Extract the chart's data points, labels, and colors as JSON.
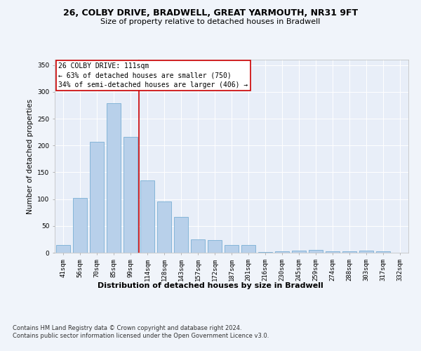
{
  "title1": "26, COLBY DRIVE, BRADWELL, GREAT YARMOUTH, NR31 9FT",
  "title2": "Size of property relative to detached houses in Bradwell",
  "xlabel": "Distribution of detached houses by size in Bradwell",
  "ylabel": "Number of detached properties",
  "categories": [
    "41sqm",
    "56sqm",
    "70sqm",
    "85sqm",
    "99sqm",
    "114sqm",
    "128sqm",
    "143sqm",
    "157sqm",
    "172sqm",
    "187sqm",
    "201sqm",
    "216sqm",
    "230sqm",
    "245sqm",
    "259sqm",
    "274sqm",
    "288sqm",
    "303sqm",
    "317sqm",
    "332sqm"
  ],
  "values": [
    14,
    102,
    207,
    279,
    216,
    135,
    96,
    67,
    25,
    23,
    14,
    15,
    1,
    3,
    4,
    5,
    3,
    3,
    4,
    3,
    0
  ],
  "bar_color": "#b8d0ea",
  "bar_edge_color": "#7aafd4",
  "annotation_line1": "26 COLBY DRIVE: 111sqm",
  "annotation_line2": "← 63% of detached houses are smaller (750)",
  "annotation_line3": "34% of semi-detached houses are larger (406) →",
  "annotation_box_facecolor": "#ffffff",
  "annotation_box_edgecolor": "#cc0000",
  "vline_color": "#cc0000",
  "vline_x": 4.5,
  "ylim": [
    0,
    360
  ],
  "yticks": [
    0,
    50,
    100,
    150,
    200,
    250,
    300,
    350
  ],
  "bg_color": "#e8eef8",
  "fig_bg_color": "#f0f4fa",
  "footer1": "Contains HM Land Registry data © Crown copyright and database right 2024.",
  "footer2": "Contains public sector information licensed under the Open Government Licence v3.0.",
  "title1_fontsize": 9,
  "title2_fontsize": 8,
  "xlabel_fontsize": 8,
  "ylabel_fontsize": 7.5,
  "tick_fontsize": 6.5,
  "annotation_fontsize": 7,
  "footer_fontsize": 6
}
